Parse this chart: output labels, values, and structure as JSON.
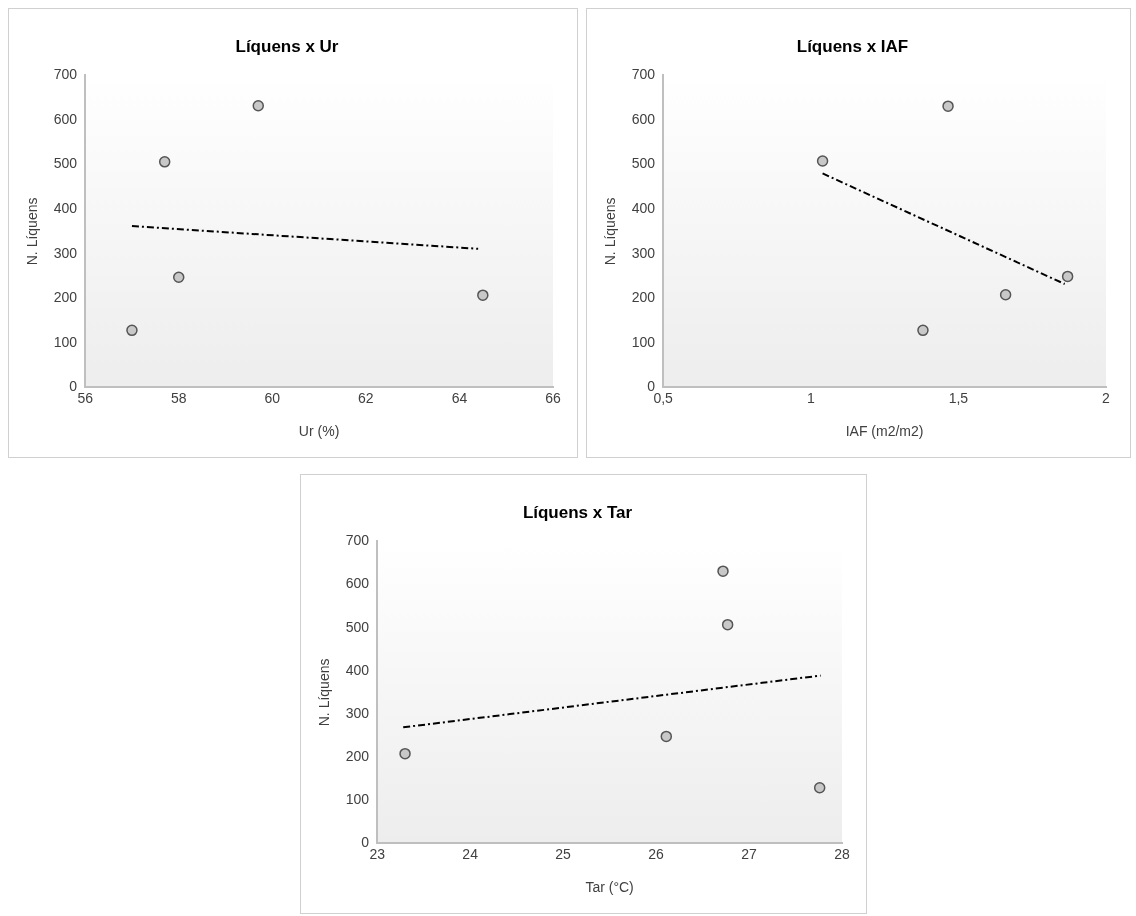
{
  "chart_data": [
    {
      "type": "scatter",
      "title": "Líquens x Ur",
      "xlabel": "Ur (%)",
      "ylabel": "N. Líquens",
      "xlim": [
        56,
        66
      ],
      "xticks": [
        56,
        58,
        60,
        62,
        64,
        66
      ],
      "ylim": [
        0,
        700
      ],
      "yticks": [
        0,
        100,
        200,
        300,
        400,
        500,
        600,
        700
      ],
      "grid": false,
      "legend": false,
      "marker": "circle",
      "series": [
        {
          "color": "#c8c8c8",
          "x": [
            57.0,
            57.7,
            58.0,
            59.7,
            64.5
          ],
          "values": [
            128,
            506,
            247,
            632,
            207
          ]
        },
        {
          "type": "line",
          "color": "#000000",
          "line_style": "dashed",
          "marker": "none",
          "x": [
            57.0,
            64.4
          ],
          "values": [
            362,
            311
          ]
        }
      ]
    },
    {
      "type": "scatter",
      "title": "Líquens x IAF",
      "xlabel": "IAF (m2/m2)",
      "ylabel": "N. Líquens",
      "xlim": [
        0.5,
        2
      ],
      "xticks": [
        {
          "value": 0.5,
          "label": "0,5"
        },
        1,
        {
          "value": 1.5,
          "label": "1,5"
        },
        2
      ],
      "ylim": [
        0,
        700
      ],
      "yticks": [
        0,
        100,
        200,
        300,
        400,
        500,
        600,
        700
      ],
      "grid": false,
      "legend": false,
      "marker": "circle",
      "series": [
        {
          "color": "#c8c8c8",
          "x": [
            1.04,
            1.465,
            1.38,
            1.66,
            1.87
          ],
          "values": [
            508,
            631,
            128,
            208,
            249
          ]
        },
        {
          "type": "line",
          "color": "#000000",
          "line_style": "dashed",
          "marker": "none",
          "x": [
            1.04,
            1.86
          ],
          "values": [
            480,
            232
          ]
        }
      ]
    },
    {
      "type": "scatter",
      "title": "Líquens x Tar",
      "xlabel": "Tar (°C)",
      "ylabel": "N. Líquens",
      "xlim": [
        23,
        28
      ],
      "xticks": [
        23,
        24,
        25,
        26,
        27,
        28
      ],
      "ylim": [
        0,
        700
      ],
      "yticks": [
        0,
        100,
        200,
        300,
        400,
        500,
        600,
        700
      ],
      "grid": false,
      "legend": false,
      "marker": "circle",
      "series": [
        {
          "color": "#c8c8c8",
          "x": [
            23.3,
            26.11,
            26.72,
            26.77,
            27.76
          ],
          "values": [
            208,
            248,
            631,
            507,
            129
          ]
        },
        {
          "type": "line",
          "color": "#000000",
          "line_style": "dashed",
          "marker": "none",
          "x": [
            23.28,
            27.77
          ],
          "values": [
            269,
            389
          ]
        }
      ]
    }
  ]
}
